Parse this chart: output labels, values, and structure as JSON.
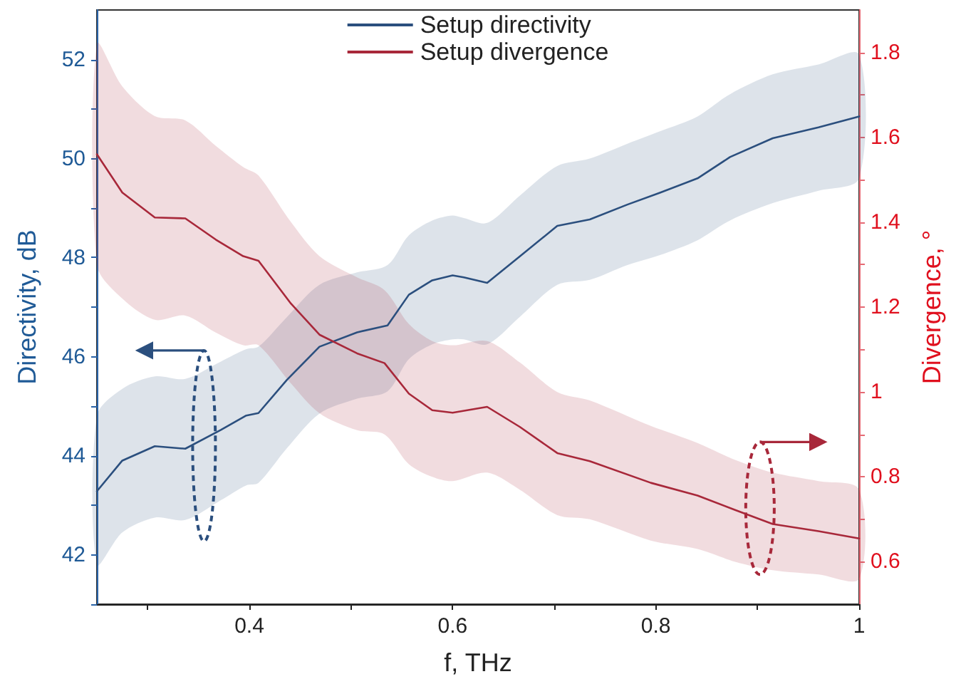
{
  "chart_data": {
    "type": "line",
    "xlabel": "f, THz",
    "ylabel": "Directivity, dB",
    "y2label": "Divergence, °",
    "xlim": [
      0.25,
      1
    ],
    "xticks": [
      {
        "value": 0.3,
        "label": null
      },
      0.4,
      {
        "value": 0.5,
        "label": null
      },
      0.6,
      {
        "value": 0.7,
        "label": null
      },
      0.8,
      {
        "value": 0.9,
        "label": null
      },
      1
    ],
    "ylim": [
      41,
      53
    ],
    "yticks": [
      {
        "value": 41,
        "label": null
      },
      42,
      {
        "value": 43,
        "label": null
      },
      44,
      {
        "value": 45,
        "label": null
      },
      46,
      {
        "value": 47,
        "label": null
      },
      48,
      {
        "value": 49,
        "label": null
      },
      50,
      {
        "value": 51,
        "label": null
      },
      52
    ],
    "y2lim": [
      0.5,
      1.9
    ],
    "y2ticks": [
      0.6,
      {
        "value": 0.7,
        "label": null
      },
      0.8,
      {
        "value": 0.9,
        "label": null
      },
      1,
      {
        "value": 1.1,
        "label": null
      },
      1.2,
      {
        "value": 1.3,
        "label": null
      },
      1.4,
      {
        "value": 1.5,
        "label": null
      },
      1.6,
      {
        "value": 1.7,
        "label": null
      },
      1.8
    ],
    "legend": "top",
    "grid": false,
    "marker": "none",
    "line_style": "solid",
    "series": [
      {
        "name": "Setup directivity",
        "color": "#2b4f7e",
        "x": [
          0.25,
          0.275,
          0.307,
          0.337,
          0.372,
          0.397,
          0.409,
          0.437,
          0.469,
          0.506,
          0.536,
          0.557,
          0.58,
          0.6,
          0.611,
          0.634,
          0.666,
          0.703,
          0.735,
          0.772,
          0.804,
          0.841,
          0.873,
          0.915,
          0.96,
          1.0
        ],
        "values": [
          43.28,
          43.9,
          44.19,
          44.14,
          44.52,
          44.81,
          44.86,
          45.53,
          46.2,
          46.49,
          46.63,
          47.25,
          47.54,
          47.64,
          47.6,
          47.49,
          48.02,
          48.64,
          48.77,
          49.07,
          49.31,
          49.6,
          50.03,
          50.41,
          50.63,
          50.85
        ],
        "upper": [
          44.8,
          45.35,
          45.6,
          45.55,
          45.9,
          46.15,
          46.2,
          46.8,
          47.45,
          47.7,
          47.85,
          48.45,
          48.75,
          48.85,
          48.8,
          48.7,
          49.25,
          49.85,
          50.0,
          50.3,
          50.55,
          50.85,
          51.3,
          51.7,
          51.9,
          52.1
        ],
        "lower": [
          41.8,
          42.45,
          42.75,
          42.7,
          43.1,
          43.4,
          43.45,
          44.15,
          44.85,
          45.15,
          45.3,
          45.95,
          46.25,
          46.35,
          46.35,
          46.25,
          46.8,
          47.45,
          47.55,
          47.85,
          48.05,
          48.35,
          48.75,
          49.1,
          49.35,
          49.6
        ]
      },
      {
        "name": "Setup divergence",
        "color": "#a8283a",
        "axis": "y2",
        "x": [
          0.25,
          0.275,
          0.307,
          0.337,
          0.367,
          0.394,
          0.409,
          0.441,
          0.469,
          0.506,
          0.533,
          0.557,
          0.58,
          0.6,
          0.634,
          0.666,
          0.703,
          0.735,
          0.795,
          0.841,
          0.878,
          0.915,
          0.96,
          1.0
        ],
        "values": [
          1.56,
          1.47,
          1.411,
          1.409,
          1.359,
          1.32,
          1.309,
          1.208,
          1.135,
          1.091,
          1.068,
          0.996,
          0.957,
          0.951,
          0.965,
          0.918,
          0.856,
          0.837,
          0.786,
          0.756,
          0.722,
          0.689,
          0.672,
          0.655
        ],
        "upper": [
          1.82,
          1.72,
          1.65,
          1.64,
          1.58,
          1.53,
          1.51,
          1.4,
          1.32,
          1.27,
          1.24,
          1.16,
          1.12,
          1.11,
          1.12,
          1.07,
          1.0,
          0.98,
          0.92,
          0.88,
          0.84,
          0.81,
          0.79,
          0.77
        ],
        "lower": [
          1.3,
          1.22,
          1.17,
          1.18,
          1.14,
          1.11,
          1.11,
          1.02,
          0.95,
          0.91,
          0.9,
          0.83,
          0.8,
          0.79,
          0.81,
          0.77,
          0.71,
          0.7,
          0.65,
          0.63,
          0.6,
          0.58,
          0.57,
          0.56
        ]
      }
    ]
  }
}
